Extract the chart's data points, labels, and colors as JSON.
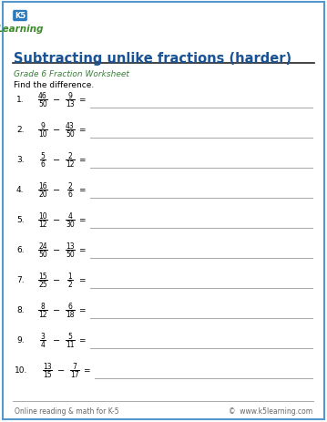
{
  "title": "Subtracting unlike fractions (harder)",
  "subtitle": "Grade 6 Fraction Worksheet",
  "instruction": "Find the difference.",
  "problems": [
    {
      "num": "1.",
      "n1": "46",
      "d1": "50",
      "n2": "9",
      "d2": "13"
    },
    {
      "num": "2.",
      "n1": "9",
      "d1": "10",
      "n2": "43",
      "d2": "50"
    },
    {
      "num": "3.",
      "n1": "5",
      "d1": "6",
      "n2": "2",
      "d2": "12"
    },
    {
      "num": "4.",
      "n1": "16",
      "d1": "20",
      "n2": "2",
      "d2": "6"
    },
    {
      "num": "5.",
      "n1": "10",
      "d1": "12",
      "n2": "4",
      "d2": "30"
    },
    {
      "num": "6.",
      "n1": "24",
      "d1": "50",
      "n2": "13",
      "d2": "50"
    },
    {
      "num": "7.",
      "n1": "15",
      "d1": "25",
      "n2": "1",
      "d2": "2"
    },
    {
      "num": "8.",
      "n1": "8",
      "d1": "12",
      "n2": "6",
      "d2": "18"
    },
    {
      "num": "9.",
      "n1": "3",
      "d1": "4",
      "n2": "5",
      "d2": "11"
    },
    {
      "num": "10.",
      "n1": "13",
      "d1": "15",
      "n2": "7",
      "d2": "17"
    }
  ],
  "footer_left": "Online reading & math for K-5",
  "footer_right": "©  www.k5learning.com",
  "title_color": "#1a5296",
  "subtitle_color": "#3a7d3a",
  "border_color": "#5599cc",
  "background_color": "#ffffff",
  "line_color": "#aaaaaa",
  "title_underline_color": "#222222",
  "fraction_color": "#000000",
  "number_color": "#000000",
  "footer_color": "#666666",
  "logo_blue": "#2a7abd",
  "logo_green": "#3a8a2a"
}
